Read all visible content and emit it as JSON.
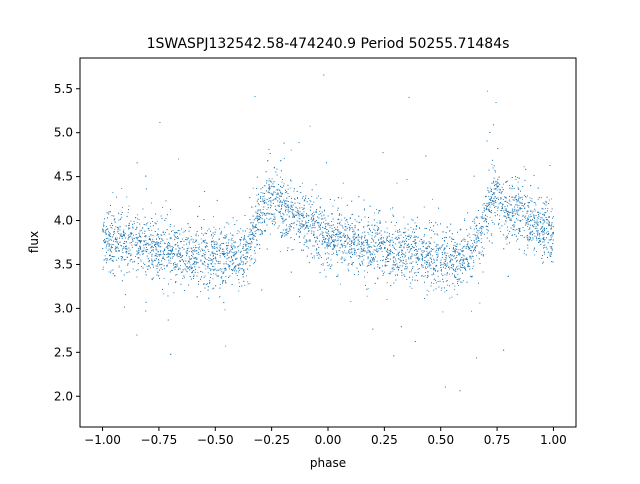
{
  "chart_data": {
    "type": "scatter",
    "title": "1SWASPJ132542.58-474240.9 Period 50255.71484s",
    "xlabel": "phase",
    "ylabel": "flux",
    "xlim": [
      -1.1,
      1.1
    ],
    "ylim": [
      1.65,
      5.85
    ],
    "xticks": [
      -1.0,
      -0.75,
      -0.5,
      -0.25,
      0.0,
      0.25,
      0.5,
      0.75,
      1.0
    ],
    "xtick_labels": [
      "−1.00",
      "−0.75",
      "−0.50",
      "−0.25",
      "0.00",
      "0.25",
      "0.50",
      "0.75",
      "1.00"
    ],
    "yticks": [
      2.0,
      2.5,
      3.0,
      3.5,
      4.0,
      4.5,
      5.0,
      5.5
    ],
    "ytick_labels": [
      "2.0",
      "2.5",
      "3.0",
      "3.5",
      "4.0",
      "4.5",
      "5.0",
      "5.5"
    ],
    "grid": false,
    "marker_color": "#1f77b4",
    "series": [
      {
        "x": [
          -1.0,
          -0.9,
          -0.8,
          -0.7,
          -0.6,
          -0.5,
          -0.45,
          -0.4,
          -0.35,
          -0.3,
          -0.27,
          -0.25,
          -0.2,
          -0.15,
          -0.1,
          -0.05,
          0.0,
          0.1,
          0.2,
          0.3,
          0.4,
          0.5,
          0.55,
          0.6,
          0.65,
          0.7,
          0.73,
          0.75,
          0.8,
          0.85,
          0.9,
          0.95,
          1.0
        ],
        "y": [
          3.78,
          3.75,
          3.7,
          3.65,
          3.62,
          3.58,
          3.57,
          3.57,
          3.7,
          4.05,
          4.25,
          4.28,
          4.15,
          4.05,
          3.97,
          3.9,
          3.83,
          3.75,
          3.7,
          3.65,
          3.62,
          3.58,
          3.57,
          3.57,
          3.7,
          4.05,
          4.25,
          4.28,
          4.15,
          4.05,
          3.97,
          3.9,
          3.83
        ]
      }
    ]
  }
}
